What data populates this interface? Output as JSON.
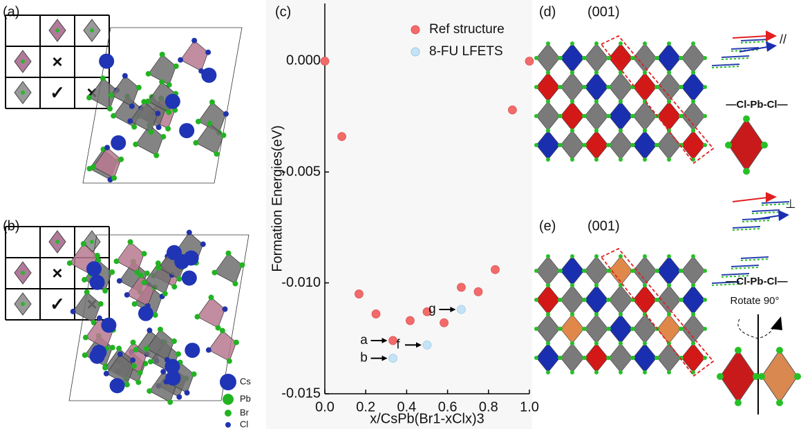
{
  "chart_data": {
    "type": "scatter",
    "xlabel": "x/CsPb(Br1-xClx)3",
    "ylabel": "Formation Energies(eV)",
    "xlim": [
      0,
      1.0
    ],
    "ylim": [
      -0.015,
      0.0026
    ],
    "xticks": [
      {
        "value": 0,
        "label": "0.0"
      },
      0.2,
      0.4,
      0.6,
      0.8,
      {
        "value": 1.0,
        "label": "1.0"
      }
    ],
    "yticks": [
      {
        "value": 0,
        "label": "0.000"
      },
      -0.005,
      {
        "value": -0.01,
        "label": "-0.010"
      },
      -0.015
    ],
    "legend": "upper right",
    "series": [
      {
        "name": "Ref structure",
        "color": "#f26a6a",
        "x": [
          0,
          0.083,
          0.167,
          0.25,
          0.333,
          0.417,
          0.5,
          0.583,
          0.667,
          0.75,
          0.833,
          0.917,
          1.0
        ],
        "values": [
          0,
          -0.0034,
          -0.0105,
          -0.0114,
          -0.0126,
          -0.0117,
          -0.0113,
          -0.0118,
          -0.0102,
          -0.0104,
          -0.0094,
          -0.0022,
          0
        ]
      },
      {
        "name": "8-FU LFETS",
        "color": "#c5e3f6",
        "x": [
          0.333,
          0.5,
          0.667
        ],
        "values": [
          -0.0134,
          -0.0128,
          -0.0112
        ]
      }
    ],
    "annotations": [
      "a",
      "b",
      "f",
      "g"
    ]
  },
  "figure": {
    "panel_labels": [
      "(a)",
      "(b)",
      "(c)",
      "(d)",
      "(e)"
    ],
    "table_marks_a": [
      "×",
      "✓",
      "×"
    ],
    "table_marks_b": [
      "×",
      "✓",
      "×"
    ],
    "species": [
      "Cs",
      "Pb",
      "Br",
      "Cl"
    ],
    "plane_labels": [
      "(001)",
      "(001)"
    ],
    "bond_labels": [
      "—Cl-Pb-Cl—",
      "—Cl-Pb-Cl—"
    ],
    "parallel": "//",
    "perpendicular": "⊥",
    "rotate": "Rotate 90°"
  }
}
